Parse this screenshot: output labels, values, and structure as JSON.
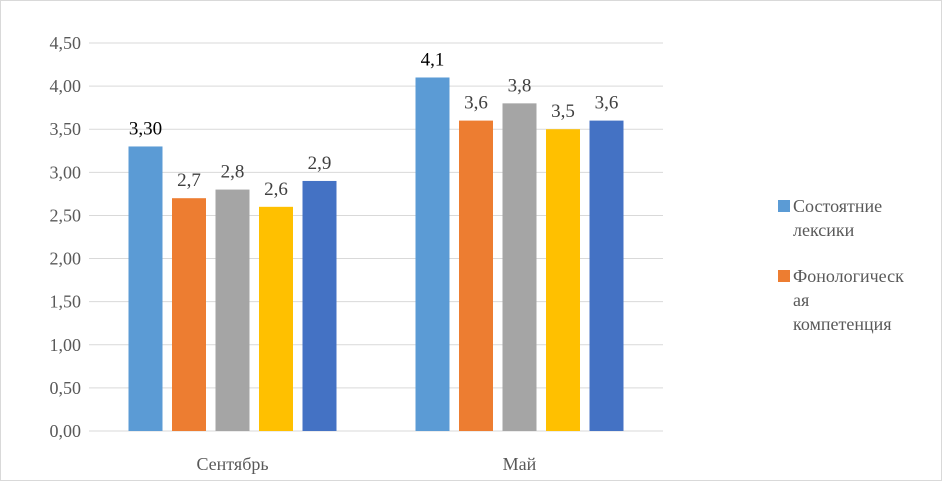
{
  "chart_data": {
    "type": "bar",
    "categories": [
      "Сентябрь",
      "Май"
    ],
    "ylim": [
      0,
      4.5
    ],
    "yticks": [
      "0,00",
      "0,50",
      "1,00",
      "1,50",
      "2,00",
      "2,50",
      "3,00",
      "3,50",
      "4,00",
      "4,50"
    ],
    "grid": true,
    "legend_position": "right",
    "series": [
      {
        "name": "Состоятние лексики",
        "legend_lines": [
          "Состоятние",
          "лексики"
        ],
        "color": "#5B9BD5",
        "values": [
          3.3,
          4.1
        ],
        "labels": [
          "3,30",
          "4,1"
        ]
      },
      {
        "name": "Фонологическая компетенция",
        "legend_lines": [
          "Фонологическ",
          "ая",
          "компетенция"
        ],
        "color": "#ED7D31",
        "values": [
          2.7,
          3.6
        ],
        "labels": [
          "2,7",
          "3,6"
        ]
      },
      {
        "color": "#A5A5A5",
        "values": [
          2.8,
          3.8
        ],
        "labels": [
          "2,8",
          "3,8"
        ]
      },
      {
        "color": "#FFC000",
        "values": [
          2.6,
          3.5
        ],
        "labels": [
          "2,6",
          "3,5"
        ]
      },
      {
        "color": "#4472C4",
        "values": [
          2.9,
          3.6
        ],
        "labels": [
          "2,9",
          "3,6"
        ]
      }
    ]
  }
}
